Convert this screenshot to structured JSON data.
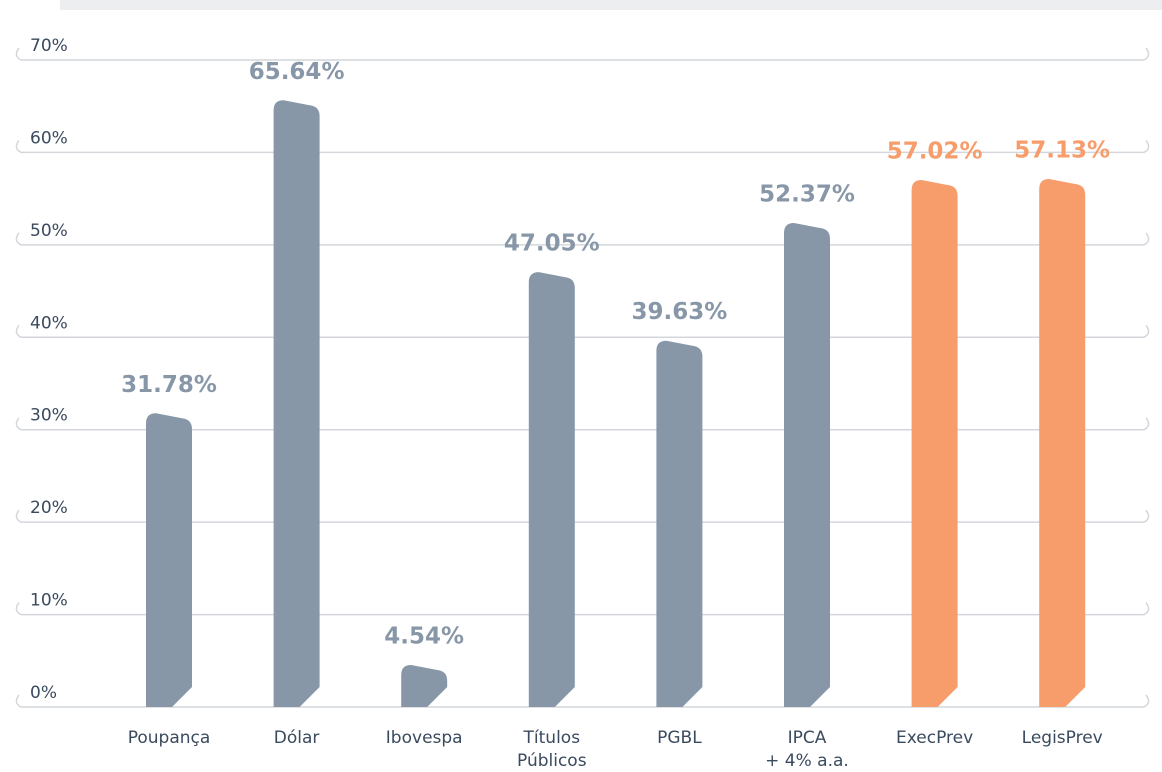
{
  "chart_data": {
    "type": "bar",
    "categories": [
      [
        "Poupança"
      ],
      [
        "Dólar"
      ],
      [
        "Ibovespa"
      ],
      [
        "Títulos",
        "Públicos"
      ],
      [
        "PGBL"
      ],
      [
        "IPCA",
        "+ 4% a.a."
      ],
      [
        "ExecPrev"
      ],
      [
        "LegisPrev"
      ]
    ],
    "values": [
      31.78,
      65.64,
      4.54,
      47.05,
      39.63,
      52.37,
      57.02,
      57.13
    ],
    "value_labels": [
      "31.78%",
      "65.64%",
      "4.54%",
      "47.05%",
      "39.63%",
      "52.37%",
      "57.02%",
      "57.13%"
    ],
    "colors": [
      "#8797a8",
      "#8797a8",
      "#8797a8",
      "#8797a8",
      "#8797a8",
      "#8797a8",
      "#f79d6b",
      "#f79d6b"
    ],
    "ylim": [
      0,
      70
    ],
    "yticks": [
      {
        "value": 0,
        "label": "0%"
      },
      {
        "value": 10,
        "label": "10%"
      },
      {
        "value": 20,
        "label": "20%"
      },
      {
        "value": 30,
        "label": "30%"
      },
      {
        "value": 40,
        "label": "40%"
      },
      {
        "value": 50,
        "label": "50%"
      },
      {
        "value": 60,
        "label": "60%"
      },
      {
        "value": 70,
        "label": "70%"
      }
    ],
    "grid": true
  }
}
